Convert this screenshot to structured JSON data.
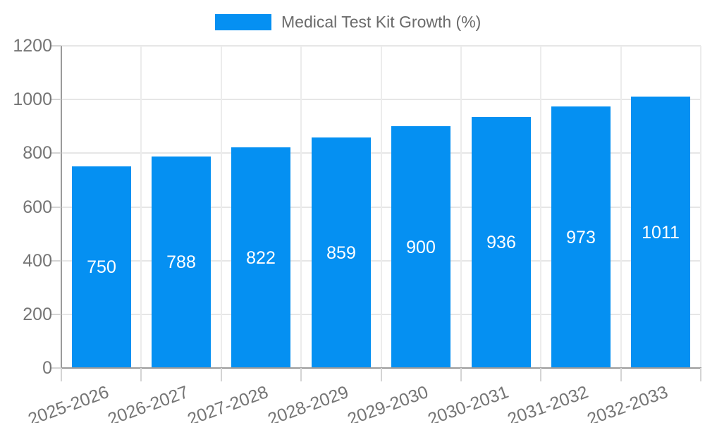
{
  "chart_data": {
    "type": "bar",
    "title": "Medical Test Kit Growth (%)",
    "legend": "Medical Test Kit Growth (%)",
    "legend_position": "top-center",
    "categories": [
      "2025-2026",
      "2026-2027",
      "2027-2028",
      "2028-2029",
      "2029-2030",
      "2030-2031",
      "2031-2032",
      "2032-2033"
    ],
    "values": [
      750,
      788,
      822,
      859,
      900,
      936,
      973,
      1011
    ],
    "bar_value_labels": [
      "750",
      "788",
      "822",
      "859",
      "900",
      "936",
      "973",
      "1011"
    ],
    "y_ticks": [
      0,
      200,
      400,
      600,
      800,
      1000,
      1200
    ],
    "ylim": [
      0,
      1200
    ],
    "xlabel": "",
    "ylabel": "",
    "grid": true,
    "x_label_rotation_deg": -20,
    "colors": {
      "bar": "#0590f2",
      "bar_label": "#ffffff",
      "h_grid": "#e6e6e6",
      "v_grid": "#ececec",
      "axis": "#9b9b9b",
      "tick": "#d4d4d4",
      "axis_text": "#757575",
      "legend_text": "#6b6b6b",
      "background": "#ffffff"
    }
  }
}
